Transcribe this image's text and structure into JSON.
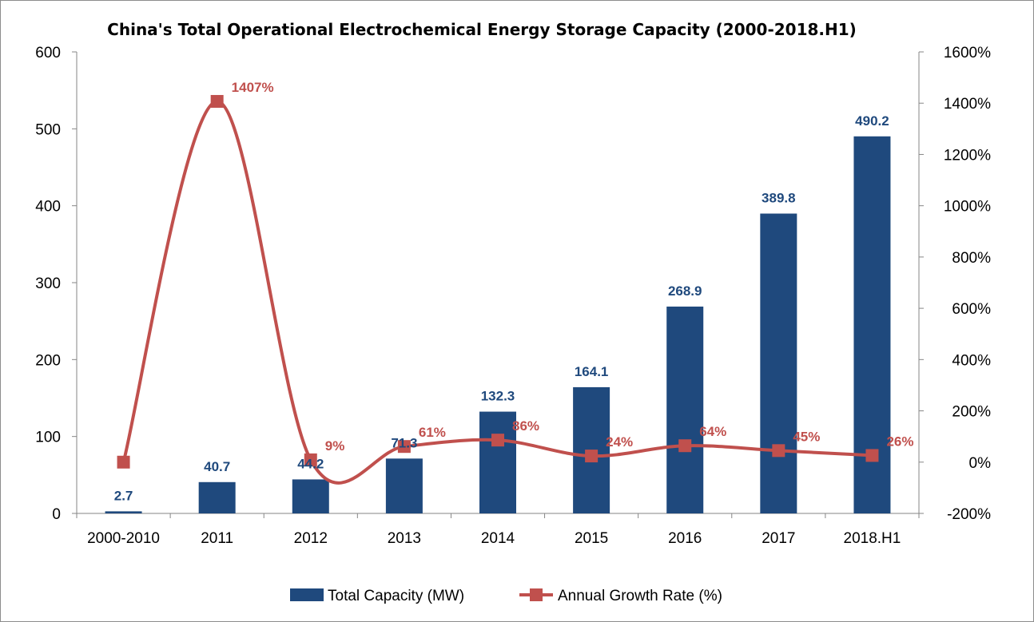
{
  "chart_data": {
    "type": "bar",
    "title": "China's Total Operational Electrochemical Energy Storage Capacity (2000-2018.H1)",
    "categories": [
      "2000-2010",
      "2011",
      "2012",
      "2013",
      "2014",
      "2015",
      "2016",
      "2017",
      "2018.H1"
    ],
    "series": [
      {
        "name": "Total Capacity (MW)",
        "type": "bar",
        "axis": "left",
        "color": "#1f497d",
        "values": [
          2.7,
          40.7,
          44.2,
          71.3,
          132.3,
          164.1,
          268.9,
          389.8,
          490.2
        ],
        "labels": [
          "2.7",
          "40.7",
          "44.2",
          "71.3",
          "132.3",
          "164.1",
          "268.9",
          "389.8",
          "490.2"
        ]
      },
      {
        "name": "Annual Growth Rate (%)",
        "type": "line",
        "axis": "right",
        "smooth": true,
        "marker": "square",
        "color": "#c0504d",
        "values": [
          0,
          1407,
          9,
          61,
          86,
          24,
          64,
          45,
          26
        ],
        "labels": [
          "",
          "1407%",
          "9%",
          "61%",
          "86%",
          "24%",
          "64%",
          "45%",
          "26%"
        ]
      }
    ],
    "y_left": {
      "lim": [
        0,
        600
      ],
      "ticks": [
        0,
        100,
        200,
        300,
        400,
        500,
        600
      ],
      "tick_labels": [
        "0",
        "100",
        "200",
        "300",
        "400",
        "500",
        "600"
      ]
    },
    "y_right": {
      "lim": [
        -200,
        1600
      ],
      "ticks": [
        -200,
        0,
        200,
        400,
        600,
        800,
        1000,
        1200,
        1400,
        1600
      ],
      "tick_labels": [
        "-200%",
        "0%",
        "200%",
        "400%",
        "600%",
        "800%",
        "1000%",
        "1200%",
        "1400%",
        "1600%"
      ]
    },
    "grid": false,
    "legend_position": "bottom-center",
    "xlabel": "",
    "ylabel": ""
  }
}
